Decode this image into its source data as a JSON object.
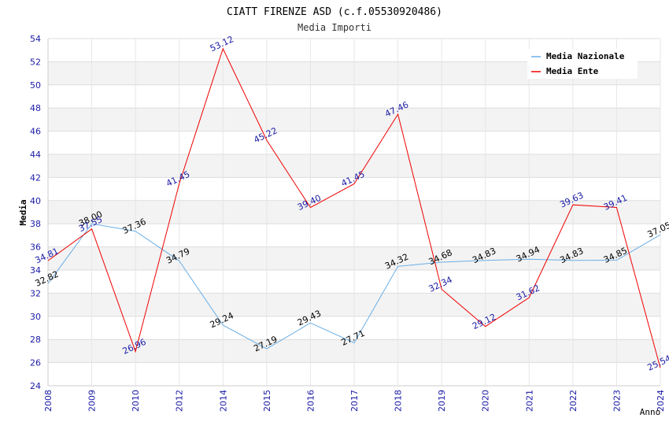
{
  "chart_data": {
    "type": "line",
    "title": "CIATT FIRENZE ASD (c.f.05530920486)",
    "subtitle": "Media Importi",
    "xlabel": "Anno",
    "ylabel": "Media",
    "ylim": [
      24,
      54
    ],
    "ytick_step": 2,
    "categories": [
      "2008",
      "2009",
      "2010",
      "2012",
      "2014",
      "2015",
      "2016",
      "2017",
      "2018",
      "2019",
      "2020",
      "2021",
      "2022",
      "2023",
      "2024"
    ],
    "series": [
      {
        "name": "Media Nazionale",
        "color": "#6aaee6",
        "label_color": "#000000",
        "values": [
          32.82,
          38.0,
          37.36,
          34.79,
          29.24,
          27.19,
          29.43,
          27.71,
          34.32,
          34.68,
          34.83,
          34.94,
          34.83,
          34.85,
          37.05
        ],
        "labels": [
          "32.82",
          "38.00",
          "37.36",
          "34.79",
          "29.24",
          "27.19",
          "29.43",
          "27.71",
          "34.32",
          "34.68",
          "34.83",
          "34.94",
          "34.83",
          "34.85",
          "37.05"
        ]
      },
      {
        "name": "Media Ente",
        "color": "#ee0000",
        "label_color": "#1a1aa6",
        "values": [
          34.81,
          37.55,
          26.96,
          41.45,
          53.12,
          45.22,
          39.4,
          41.45,
          47.46,
          32.34,
          29.12,
          31.62,
          39.63,
          39.41,
          25.54
        ],
        "labels": [
          "34.81",
          "37.55",
          "26.96",
          "41.45",
          "53.12",
          "45.22",
          "39.40",
          "41.45",
          "47.46",
          "32.34",
          "29.12",
          "31.62",
          "39.63",
          "39.41",
          "25.54"
        ]
      }
    ],
    "legend_position": "top-right",
    "grid": true
  }
}
